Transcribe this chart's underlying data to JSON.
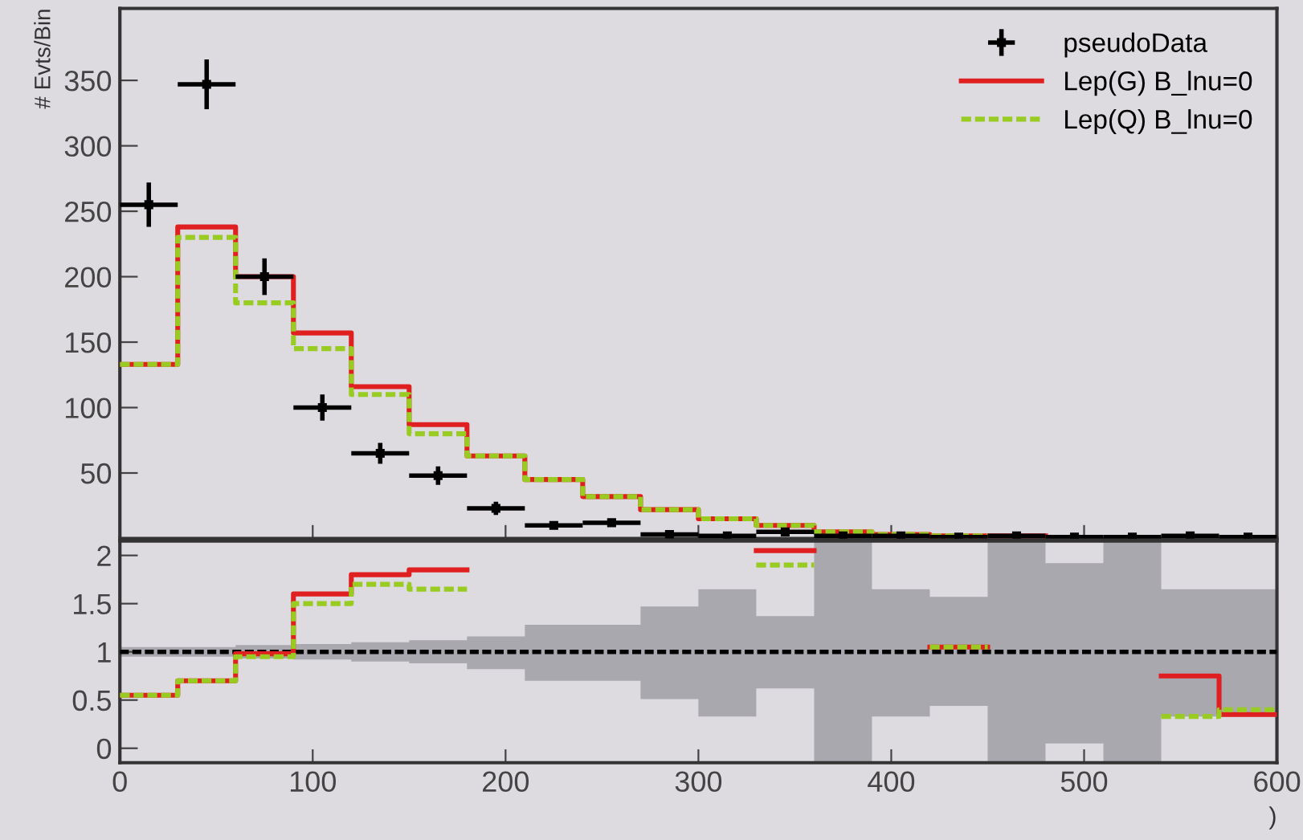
{
  "chart_data": [
    {
      "type": "step",
      "ylabel": "# Evts/Bin",
      "xlim": [
        0,
        600
      ],
      "ylim": [
        0,
        405
      ],
      "yticks": [
        {
          "value": 0,
          "label": null
        },
        50,
        100,
        150,
        200,
        250,
        300,
        350
      ],
      "tick_labels": "y",
      "legend": "top right",
      "series": [
        {
          "name": "pseudoData",
          "type": "scatter",
          "color": "#000000",
          "marker": "square",
          "x": [
            15,
            45,
            75,
            105,
            135,
            165,
            195,
            225,
            255,
            285,
            315,
            345,
            375,
            405,
            435,
            465,
            495,
            525,
            555,
            585
          ],
          "values": [
            255,
            347,
            200,
            100,
            65,
            48,
            23,
            10,
            12,
            3,
            2,
            5,
            2,
            2,
            1,
            2,
            1,
            1,
            2,
            1
          ],
          "errors": [
            17,
            19,
            14,
            10,
            8,
            7,
            5,
            3,
            3,
            2,
            1,
            2,
            1,
            1,
            1,
            1,
            1,
            1,
            1,
            1
          ],
          "xerrors": [
            15,
            15,
            15,
            15,
            15,
            15,
            15,
            15,
            15,
            15,
            15,
            15,
            15,
            15,
            15,
            15,
            15,
            15,
            15,
            15
          ]
        },
        {
          "name": "Lep(G) B_lnu=0",
          "color": "#e02020",
          "line_style": "solid",
          "x": [
            0,
            30,
            60,
            90,
            120,
            150,
            180,
            210,
            240,
            270,
            300,
            330,
            360,
            390,
            420,
            450,
            480
          ],
          "values": [
            133,
            238,
            200,
            157,
            116,
            87,
            63,
            45,
            32,
            22,
            15,
            10,
            5,
            3,
            2,
            2,
            2
          ]
        },
        {
          "name": "Lep(Q) B_lnu=0",
          "color": "#99cc22",
          "line_style": "dashed",
          "x": [
            0,
            30,
            60,
            90,
            120,
            150,
            180,
            210,
            240,
            270,
            300,
            330,
            360,
            390,
            420,
            450
          ],
          "values": [
            133,
            230,
            180,
            145,
            110,
            80,
            63,
            45,
            32,
            22,
            15,
            10,
            5,
            3,
            2,
            2
          ]
        }
      ]
    },
    {
      "type": "step",
      "xlabel": ")",
      "xlim": [
        0,
        600
      ],
      "xticks": [
        0,
        100,
        200,
        300,
        400,
        500,
        600
      ],
      "ylim": [
        -0.15,
        2.15
      ],
      "yticks": [
        0,
        0.5,
        1,
        1.5,
        2
      ],
      "ref_lines": [
        {
          "axis": "y",
          "value": 1,
          "color": "#000000",
          "line_style": "dashed"
        }
      ],
      "series": [
        {
          "type": "step",
          "color": "#a9a8ae",
          "x": [
            0,
            30,
            60,
            90,
            120,
            150,
            180,
            210,
            240,
            270,
            300,
            330,
            360,
            390,
            420,
            450,
            480,
            510,
            540,
            570,
            600
          ],
          "values": [
            null,
            null,
            null,
            null,
            null,
            null,
            null,
            null,
            null,
            null,
            null,
            null,
            null,
            null,
            null,
            null,
            null,
            null,
            null,
            null,
            null
          ],
          "lower": [
            0.95,
            0.95,
            0.93,
            0.92,
            0.9,
            0.88,
            0.82,
            0.7,
            0.7,
            0.51,
            0.33,
            0.62,
            -0.15,
            0.33,
            0.44,
            -0.15,
            0.05,
            -0.15,
            0.33,
            0.33,
            0.33
          ],
          "upper": [
            1.05,
            1.05,
            1.07,
            1.08,
            1.1,
            1.12,
            1.16,
            1.28,
            1.28,
            1.47,
            1.65,
            1.37,
            2.15,
            1.65,
            1.57,
            2.15,
            1.92,
            2.15,
            1.65,
            1.65,
            1.65
          ]
        },
        {
          "color": "#e02020",
          "line_style": "solid",
          "x": [
            0,
            30,
            60,
            90,
            120,
            150,
            180,
            210,
            240,
            270,
            300,
            330,
            360,
            390,
            420,
            450,
            480,
            510,
            540,
            570,
            600
          ],
          "values": [
            0.55,
            0.7,
            0.98,
            1.6,
            1.8,
            1.85,
            null,
            null,
            null,
            null,
            null,
            2.05,
            null,
            null,
            1.05,
            null,
            null,
            null,
            0.75,
            0.35,
            0.35
          ]
        },
        {
          "color": "#99cc22",
          "line_style": "dashed",
          "x": [
            0,
            30,
            60,
            90,
            120,
            150,
            180,
            210,
            240,
            270,
            300,
            330,
            360,
            390,
            420,
            450,
            480,
            510,
            540,
            570,
            600
          ],
          "values": [
            0.55,
            0.7,
            0.95,
            1.5,
            1.7,
            1.65,
            null,
            null,
            null,
            null,
            null,
            1.9,
            null,
            null,
            1.05,
            null,
            null,
            null,
            0.33,
            0.4,
            0.4
          ]
        }
      ]
    }
  ]
}
